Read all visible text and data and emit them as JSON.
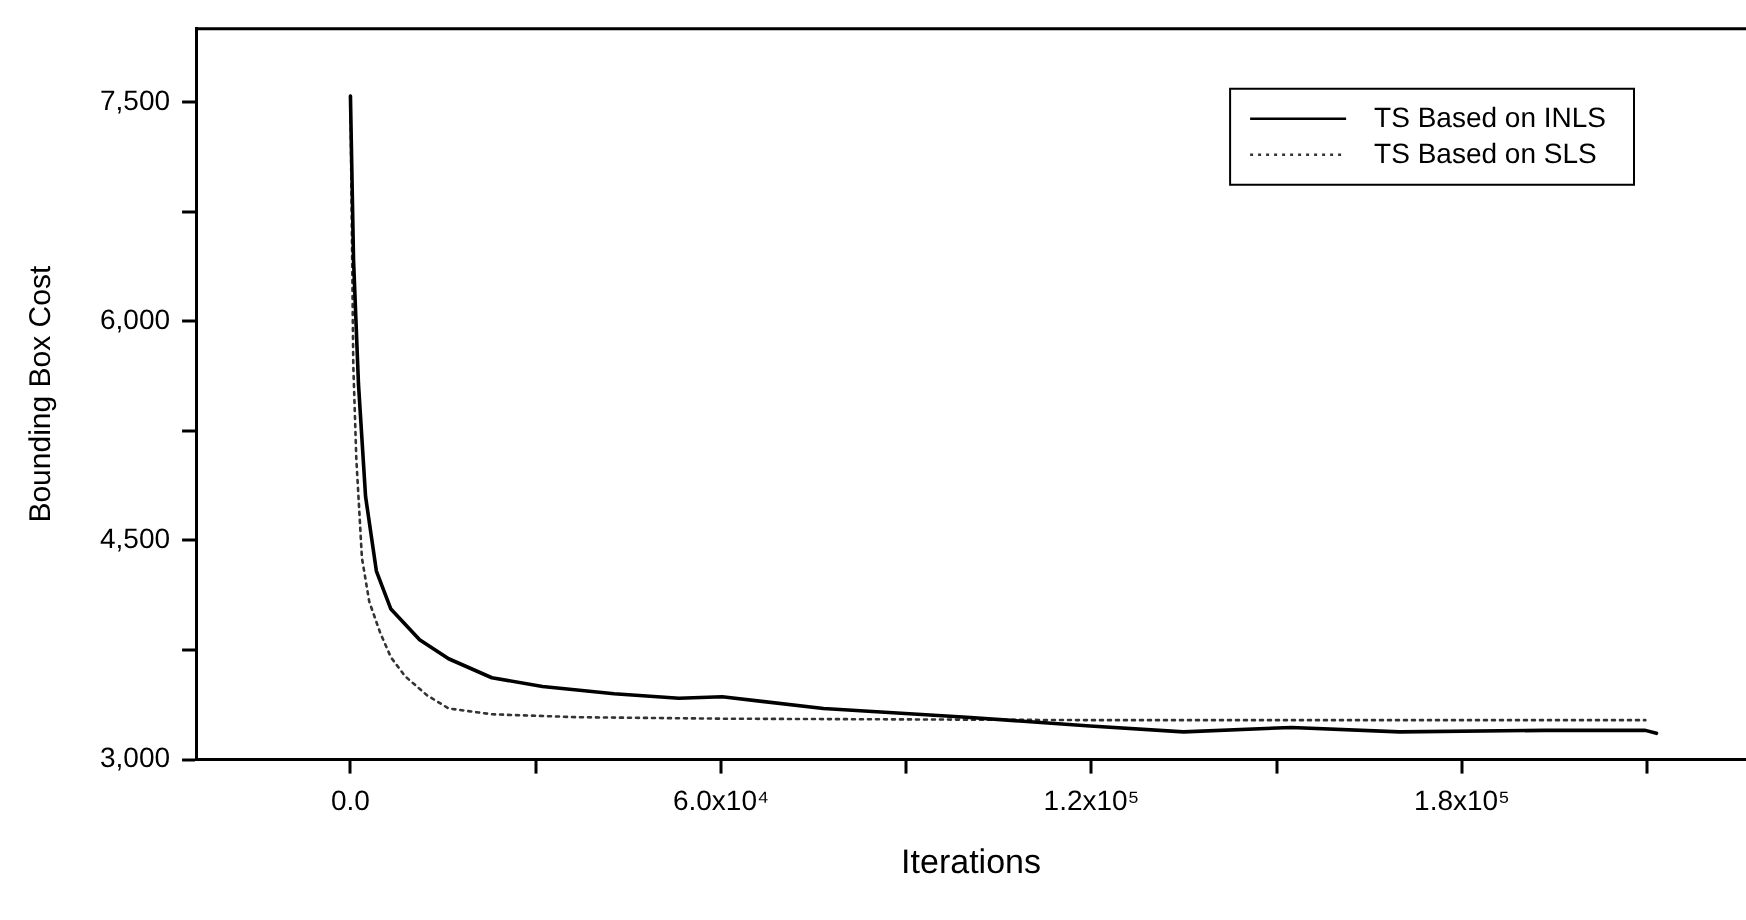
{
  "chart_data": {
    "type": "line",
    "xlabel": "Iterations",
    "ylabel": "Bounding Box Cost",
    "xlim": [
      -25000,
      226000
    ],
    "ylim": [
      3000,
      8000
    ],
    "xticks": [
      {
        "value": 0,
        "label": "0.0"
      },
      {
        "value": 30000,
        "label": null
      },
      {
        "value": 60000,
        "label": "6.0x10⁴"
      },
      {
        "value": 90000,
        "label": null
      },
      {
        "value": 120000,
        "label": "1.2x10⁵"
      },
      {
        "value": 150000,
        "label": null
      },
      {
        "value": 180000,
        "label": "1.8x10⁵"
      },
      {
        "value": 210000,
        "label": null
      }
    ],
    "yticks": [
      {
        "value": 3000,
        "label": "3,000"
      },
      {
        "value": 3750,
        "label": null
      },
      {
        "value": 4500,
        "label": "4,500"
      },
      {
        "value": 5250,
        "label": null
      },
      {
        "value": 6000,
        "label": "6,000"
      },
      {
        "value": 6750,
        "label": null
      },
      {
        "value": 7500,
        "label": "7,500"
      }
    ],
    "legend": "top right",
    "marker": "none",
    "series": [
      {
        "name": "TS Based on INLS",
        "color": "#000000",
        "line_style": "solid",
        "x": [
          0,
          500,
          1300,
          2450,
          4200,
          6550,
          11200,
          15900,
          22900,
          31100,
          42700,
          53200,
          60200,
          76600,
          99800,
          119800,
          134900,
          152400,
          169900,
          193400,
          209700,
          211500
        ],
        "values": [
          7540,
          6420,
          5570,
          4800,
          4290,
          4030,
          3820,
          3690,
          3560,
          3500,
          3450,
          3420,
          3430,
          3350,
          3290,
          3230,
          3190,
          3220,
          3190,
          3200,
          3200,
          3180
        ]
      },
      {
        "name": "TS Based on SLS",
        "color": "#333333",
        "line_style": "dotted",
        "x": [
          0,
          460,
          950,
          1860,
          3050,
          4800,
          6550,
          8860,
          12400,
          15900,
          22900,
          36900,
          60000,
          120000,
          209700
        ],
        "values": [
          7540,
          5700,
          5060,
          4380,
          4080,
          3870,
          3700,
          3570,
          3440,
          3350,
          3310,
          3290,
          3280,
          3270,
          3270
        ]
      }
    ]
  }
}
